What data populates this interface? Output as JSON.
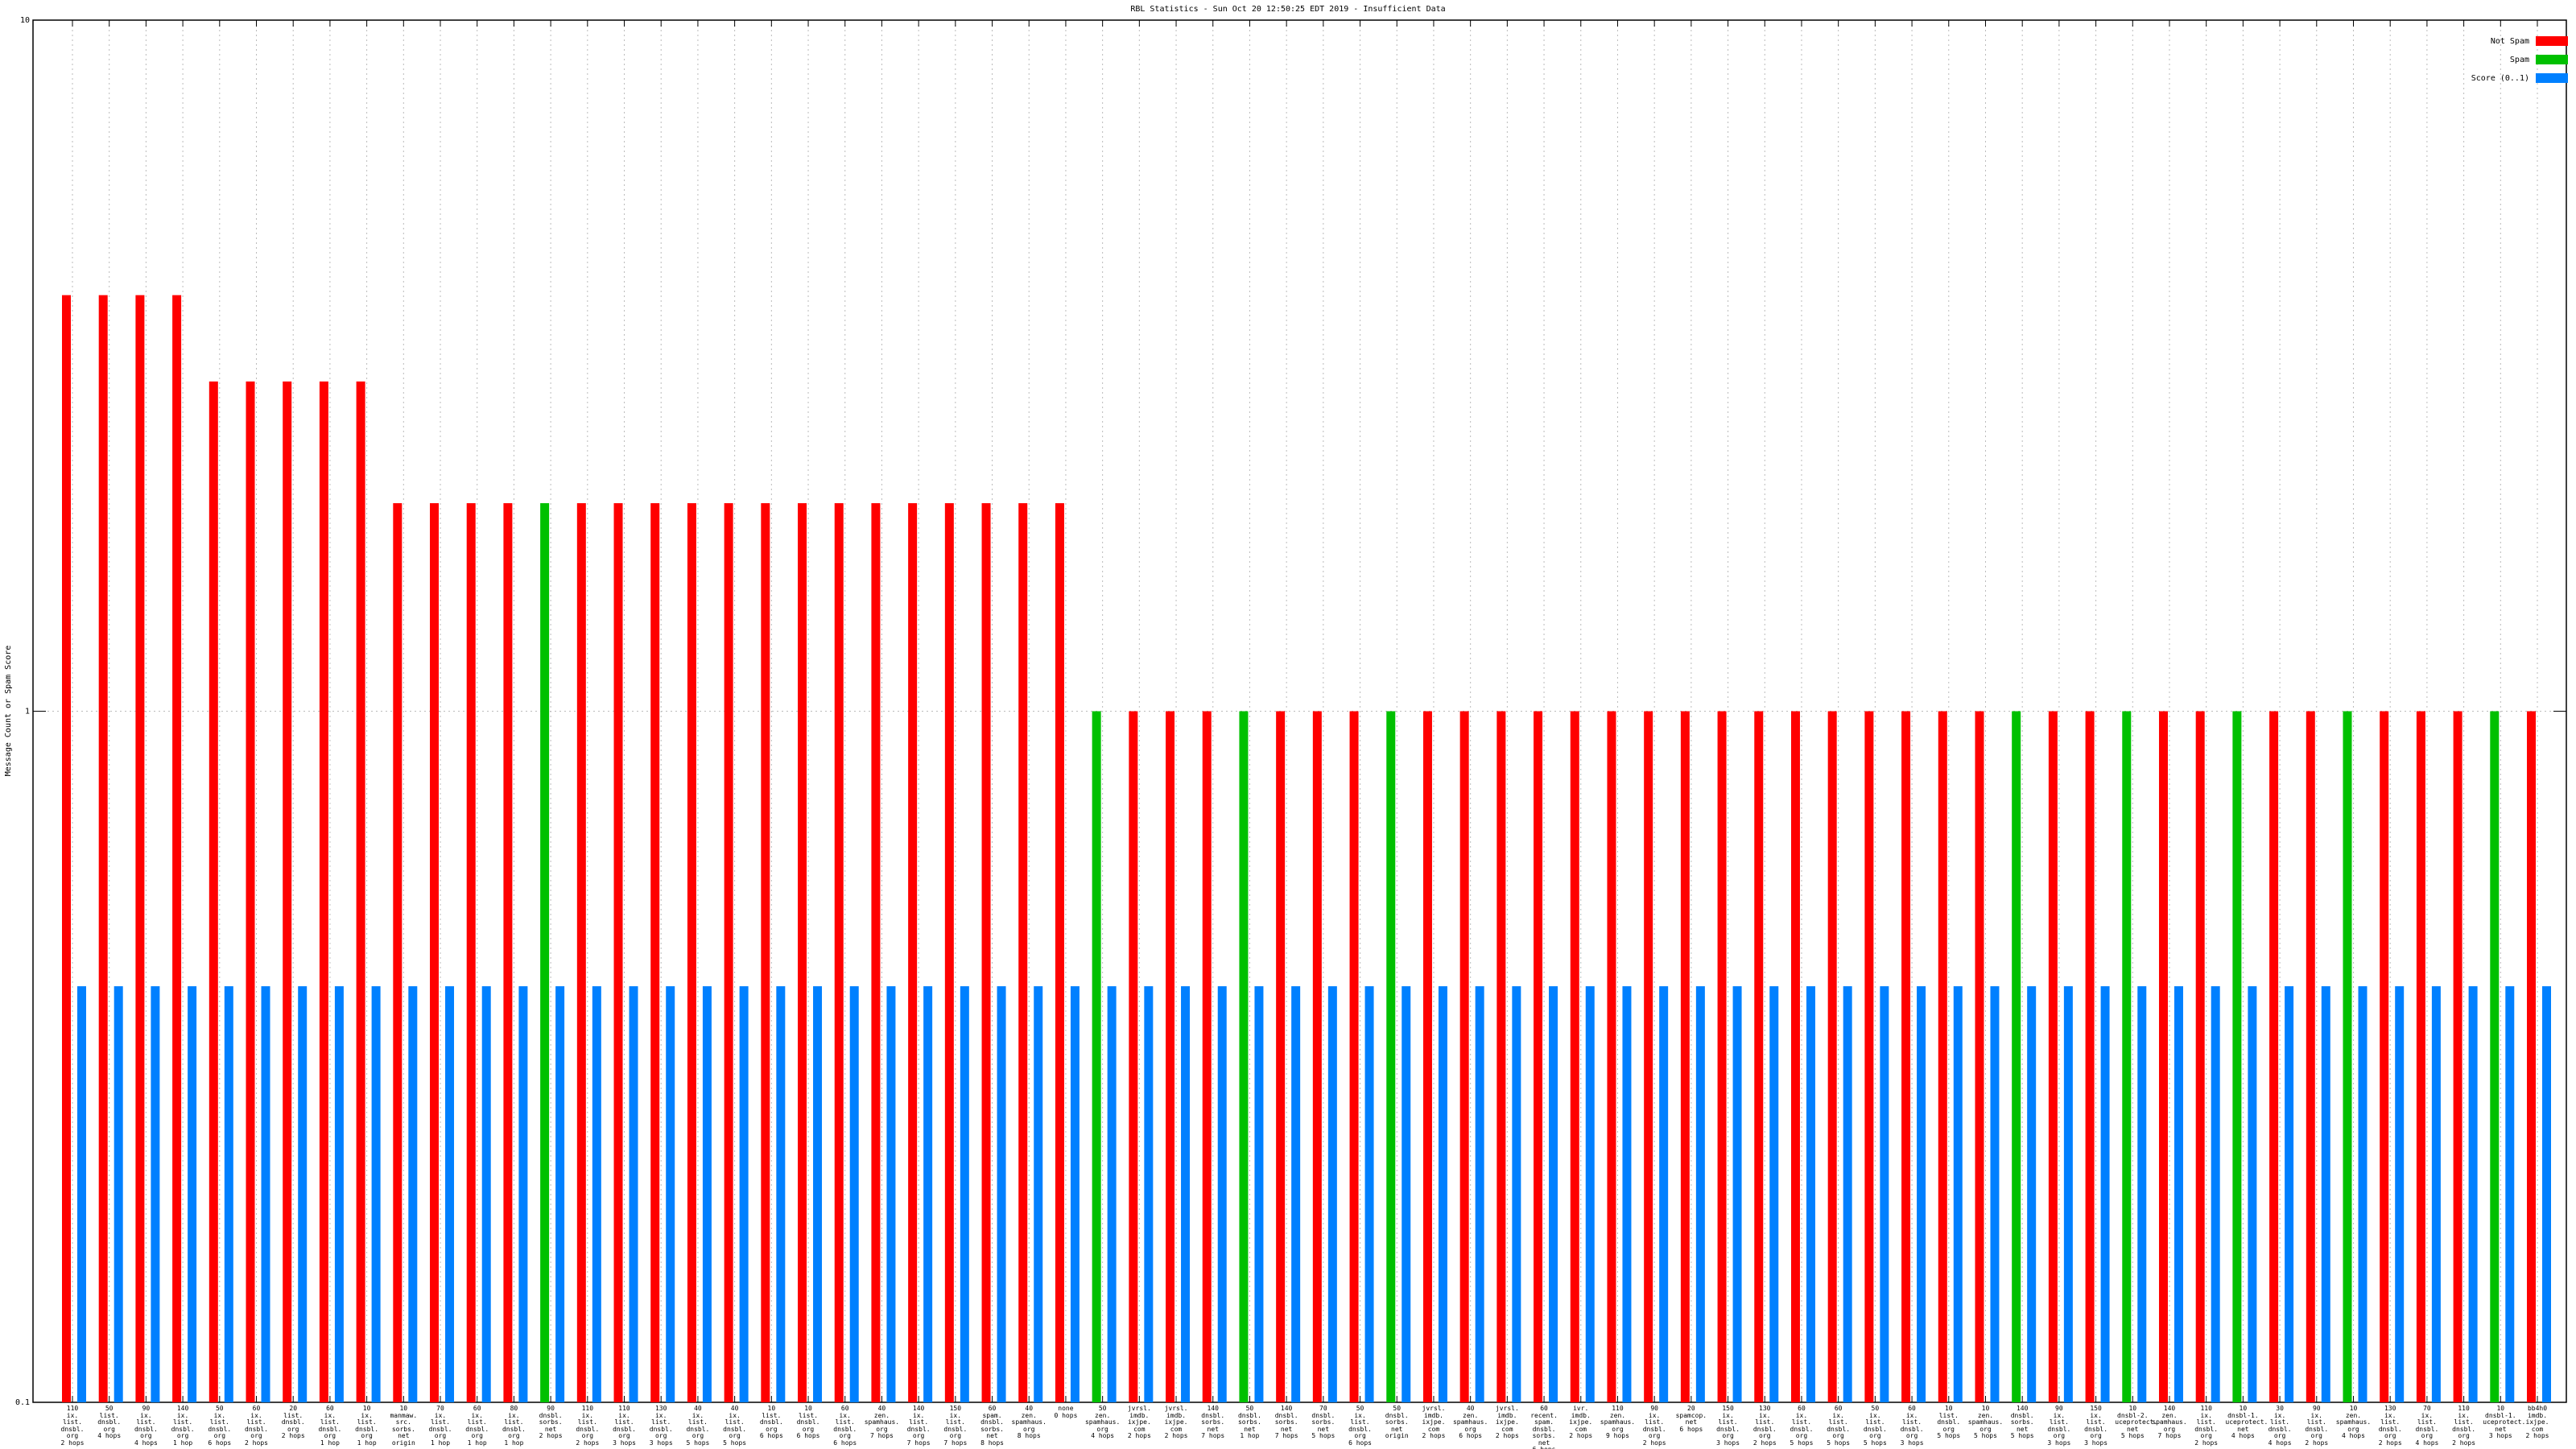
{
  "chart_data": {
    "type": "bar",
    "title": "RBL Statistics - Sun Oct 20 12:50:25 EDT 2019 - Insufficient Data",
    "ylabel": "Message Count or Spam Score",
    "yscale": "log",
    "ylim": [
      0.1,
      10
    ],
    "yticks": [
      0.1,
      1,
      10
    ],
    "grid": true,
    "legend": "upper right",
    "categories": [
      "110\nix.\nlist.\ndnsbl.\norg\n2 hops",
      "50\nlist.\ndnsbl.\norg\n4 hops",
      "90\nix.\nlist.\ndnsbl.\norg\n4 hops",
      "140\nix.\nlist.\ndnsbl.\norg\n1 hop",
      "50\nix.\nlist.\ndnsbl.\norg\n6 hops",
      "60\nix.\nlist.\ndnsbl.\norg\n2 hops",
      "20\nlist.\ndnsbl.\norg\n2 hops",
      "60\nix.\nlist.\ndnsbl.\norg\n1 hop",
      "10\nix.\nlist.\ndnsbl.\norg\n1 hop",
      "10\nmanmaw.\nsrc.\nsorbs.\nnet\norigin",
      "70\nix.\nlist.\ndnsbl.\norg\n1 hop",
      "60\nix.\nlist.\ndnsbl.\norg\n1 hop",
      "80\nix.\nlist.\ndnsbl.\norg\n1 hop",
      "90\ndnsbl.\nsorbs.\nnet\n2 hops",
      "110\nix.\nlist.\ndnsbl.\norg\n2 hops",
      "110\nix.\nlist.\ndnsbl.\norg\n3 hops",
      "130\nix.\nlist.\ndnsbl.\norg\n3 hops",
      "40\nix.\nlist.\ndnsbl.\norg\n5 hops",
      "40\nix.\nlist.\ndnsbl.\norg\n5 hops",
      "10\nlist.\ndnsbl.\norg\n6 hops",
      "10\nlist.\ndnsbl.\norg\n6 hops",
      "60\nix.\nlist.\ndnsbl.\norg\n6 hops",
      "40\nzen.\nspamhaus.\norg\n7 hops",
      "140\nix.\nlist.\ndnsbl.\norg\n7 hops",
      "150\nix.\nlist.\ndnsbl.\norg\n7 hops",
      "60\nspam.\ndnsbl.\nsorbs.\nnet\n8 hops",
      "40\nzen.\nspamhaus.\norg\n8 hops",
      "none\n0 hops",
      "50\nzen.\nspamhaus.\norg\n4 hops",
      "jvrsl.\nimdb.\nixjpe.\ncom\n2 hops",
      "jvrsl.\nimdb.\nixjpe.\ncom\n2 hops",
      "140\ndnsbl.\nsorbs.\nnet\n7 hops",
      "50\ndnsbl.\nsorbs.\nnet\n1 hop",
      "140\ndnsbl.\nsorbs.\nnet\n7 hops",
      "70\ndnsbl.\nsorbs.\nnet\n5 hops",
      "50\nix.\nlist.\ndnsbl.\norg\n6 hops",
      "50\ndnsbl.\nsorbs.\nnet\norigin",
      "jvrsl.\nimdb.\nixjpe.\ncom\n2 hops",
      "40\nzen.\nspamhaus.\norg\n6 hops",
      "jvrsl.\nimdb.\nixjpe.\ncom\n2 hops",
      "60\nrecent.\nspam.\ndnsbl.\nsorbs.\nnet\n6 hops",
      "ivr.\nimdb.\nixjpe.\ncom\n2 hops",
      "110\nzen.\nspamhaus.\norg\n9 hops",
      "90\nix.\nlist.\ndnsbl.\norg\n2 hops",
      "20\nspamcop.\nnet\n6 hops",
      "150\nix.\nlist.\ndnsbl.\norg\n3 hops",
      "130\nix.\nlist.\ndnsbl.\norg\n2 hops",
      "60\nix.\nlist.\ndnsbl.\norg\n5 hops",
      "60\nix.\nlist.\ndnsbl.\norg\n5 hops",
      "50\nix.\nlist.\ndnsbl.\norg\n5 hops",
      "60\nix.\nlist.\ndnsbl.\norg\n3 hops",
      "10\nlist.\ndnsbl.\norg\n5 hops",
      "10\nzen.\nspamhaus.\norg\n5 hops",
      "140\ndnsbl.\nsorbs.\nnet\n5 hops",
      "90\nix.\nlist.\ndnsbl.\norg\n3 hops",
      "150\nix.\nlist.\ndnsbl.\norg\n3 hops",
      "10\ndnsbl-2.\nuceprotect.\nnet\n5 hops",
      "140\nzen.\nspamhaus.\norg\n7 hops",
      "110\nix.\nlist.\ndnsbl.\norg\n2 hops",
      "10\ndnsbl-1.\nuceprotect.\nnet\n4 hops",
      "30\nix.\nlist.\ndnsbl.\norg\n4 hops",
      "90\nix.\nlist.\ndnsbl.\norg\n2 hops",
      "10\nzen.\nspamhaus.\norg\n4 hops",
      "130\nix.\nlist.\ndnsbl.\norg\n2 hops",
      "70\nix.\nlist.\ndnsbl.\norg\n4 hops",
      "110\nix.\nlist.\ndnsbl.\norg\n2 hops",
      "10\ndnsbl-1.\nuceprotect.\nnet\n3 hops",
      "bb4h0\nimdb.\nixjpe.\ncom\n2 hops"
    ],
    "series": [
      {
        "name": "Not Spam",
        "color": "#ff0000",
        "values": [
          4,
          4,
          4,
          4,
          3,
          3,
          3,
          3,
          3,
          2,
          2,
          2,
          2,
          null,
          2,
          2,
          2,
          2,
          2,
          2,
          2,
          2,
          2,
          2,
          2,
          2,
          2,
          2,
          null,
          1,
          1,
          1,
          null,
          1,
          1,
          1,
          null,
          1,
          1,
          1,
          1,
          1,
          1,
          1,
          1,
          1,
          1,
          1,
          1,
          1,
          1,
          1,
          1,
          null,
          1,
          1,
          null,
          1,
          1,
          null,
          1,
          1,
          null,
          1,
          1,
          1,
          null,
          1
        ]
      },
      {
        "name": "Spam",
        "color": "#00c000",
        "values": [
          null,
          null,
          null,
          null,
          null,
          null,
          null,
          null,
          null,
          null,
          null,
          null,
          null,
          2,
          null,
          null,
          null,
          null,
          null,
          null,
          null,
          null,
          null,
          null,
          null,
          null,
          null,
          null,
          1,
          null,
          null,
          null,
          1,
          null,
          null,
          null,
          1,
          null,
          null,
          null,
          null,
          null,
          null,
          null,
          null,
          null,
          null,
          null,
          null,
          null,
          null,
          null,
          null,
          1,
          null,
          null,
          1,
          null,
          null,
          1,
          null,
          null,
          1,
          null,
          null,
          null,
          1,
          null
        ]
      },
      {
        "name": "Score (0..1)",
        "color": "#0080ff",
        "values": [
          0.4,
          0.4,
          0.4,
          0.4,
          0.4,
          0.4,
          0.4,
          0.4,
          0.4,
          0.4,
          0.4,
          0.4,
          0.4,
          0.4,
          0.4,
          0.4,
          0.4,
          0.4,
          0.4,
          0.4,
          0.4,
          0.4,
          0.4,
          0.4,
          0.4,
          0.4,
          0.4,
          0.4,
          0.4,
          0.4,
          0.4,
          0.4,
          0.4,
          0.4,
          0.4,
          0.4,
          0.4,
          0.4,
          0.4,
          0.4,
          0.4,
          0.4,
          0.4,
          0.4,
          0.4,
          0.4,
          0.4,
          0.4,
          0.4,
          0.4,
          0.4,
          0.4,
          0.4,
          0.4,
          0.4,
          0.4,
          0.4,
          0.4,
          0.4,
          0.4,
          0.4,
          0.4,
          0.4,
          0.4,
          0.4,
          0.4,
          0.4,
          0.4
        ]
      }
    ]
  }
}
